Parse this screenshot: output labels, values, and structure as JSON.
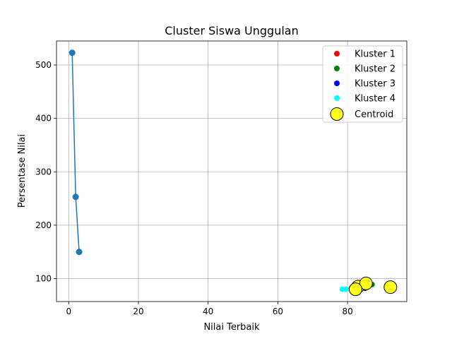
{
  "chart_data": {
    "type": "scatter",
    "title": "Cluster Siswa Unggulan",
    "xlabel": "Nilai Terbaik",
    "ylabel": "Persentase Nilai",
    "xlim": [
      -3.5,
      97
    ],
    "ylim": [
      57,
      545
    ],
    "x_ticks": [
      0,
      20,
      40,
      60,
      80
    ],
    "y_ticks": [
      100,
      200,
      300,
      400,
      500
    ],
    "grid": true,
    "legend_position": "top-right",
    "line_series": {
      "color": "#1f77b4",
      "points": [
        {
          "x": 1,
          "y": 523
        },
        {
          "x": 2,
          "y": 253
        },
        {
          "x": 3,
          "y": 150
        }
      ]
    },
    "series": [
      {
        "name": "Kluster 1",
        "color": "#ff0000",
        "points": [
          {
            "x": 83.5,
            "y": 88
          },
          {
            "x": 85.5,
            "y": 85
          }
        ]
      },
      {
        "name": "Kluster 2",
        "color": "#008000",
        "points": [
          {
            "x": 87,
            "y": 89
          },
          {
            "x": 86,
            "y": 86
          }
        ]
      },
      {
        "name": "Kluster 3",
        "color": "#0000ff",
        "points": [
          {
            "x": 84,
            "y": 84
          },
          {
            "x": 85,
            "y": 82
          }
        ]
      },
      {
        "name": "Kluster 4",
        "color": "#00ffff",
        "points": [
          {
            "x": 78.5,
            "y": 80
          },
          {
            "x": 79.5,
            "y": 80
          },
          {
            "x": 81,
            "y": 81
          },
          {
            "x": 84.5,
            "y": 83
          }
        ]
      }
    ],
    "centroids": {
      "name": "Centroid",
      "color": "#ffff1a",
      "edge_color": "#000000",
      "points": [
        {
          "x": 83,
          "y": 85
        },
        {
          "x": 85.3,
          "y": 91
        },
        {
          "x": 82.3,
          "y": 80
        },
        {
          "x": 92.3,
          "y": 84
        }
      ]
    }
  }
}
